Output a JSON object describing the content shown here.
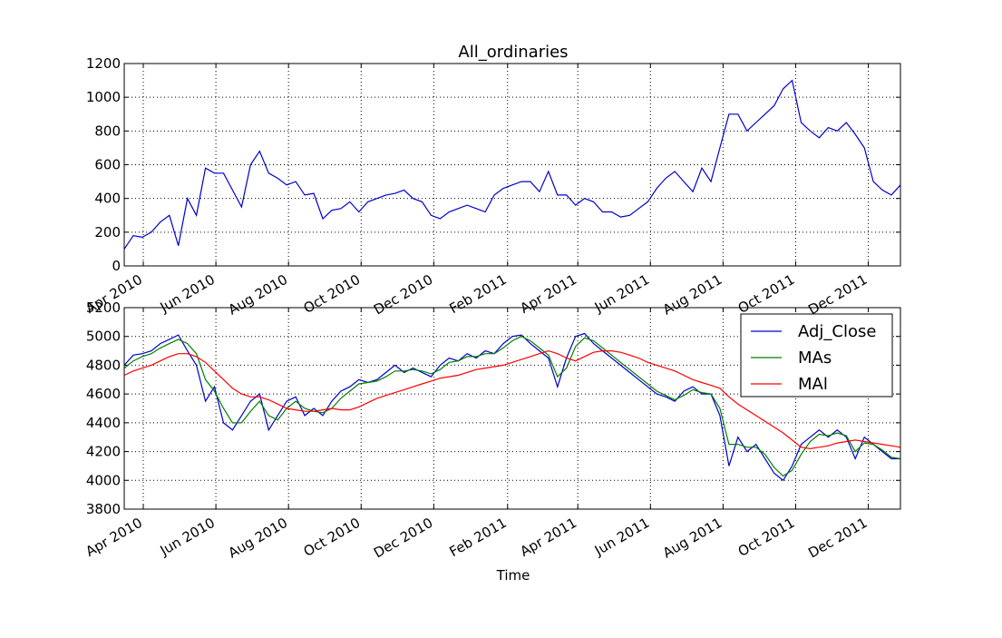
{
  "chart_data": [
    {
      "type": "line",
      "title": "All_ordinaries",
      "xlim": [
        "2010-03-16",
        "2011-12-28"
      ],
      "xticks": [
        {
          "value": "2010-04",
          "label": "Apr 2010"
        },
        {
          "value": "2010-06",
          "label": "Jun 2010"
        },
        {
          "value": "2010-08",
          "label": "Aug 2010"
        },
        {
          "value": "2010-10",
          "label": "Oct 2010"
        },
        {
          "value": "2010-12",
          "label": "Dec 2010"
        },
        {
          "value": "2011-02",
          "label": "Feb 2011"
        },
        {
          "value": "2011-04",
          "label": "Apr 2011"
        },
        {
          "value": "2011-06",
          "label": "Jun 2011"
        },
        {
          "value": "2011-08",
          "label": "Aug 2011"
        },
        {
          "value": "2011-10",
          "label": "Oct 2011"
        },
        {
          "value": "2011-12",
          "label": "Dec 2011"
        }
      ],
      "ylim": [
        0,
        1200
      ],
      "yticks": [
        0,
        200,
        400,
        600,
        800,
        1000,
        1200
      ],
      "grid": true,
      "series": [
        {
          "color": "#0000cc",
          "values": [
            100,
            180,
            170,
            200,
            260,
            300,
            120,
            400,
            300,
            580,
            550,
            550,
            450,
            350,
            600,
            680,
            550,
            520,
            480,
            500,
            420,
            430,
            280,
            330,
            340,
            380,
            320,
            380,
            400,
            420,
            430,
            450,
            400,
            380,
            300,
            280,
            320,
            340,
            360,
            340,
            320,
            420,
            460,
            480,
            500,
            500,
            440,
            560,
            420,
            420,
            360,
            400,
            380,
            320,
            320,
            290,
            300,
            340,
            380,
            460,
            520,
            560,
            500,
            440,
            580,
            500,
            700,
            900,
            900,
            800,
            850,
            900,
            950,
            1050,
            1100,
            850,
            800,
            760,
            820,
            800,
            850,
            780,
            700,
            500,
            450,
            420,
            480
          ]
        }
      ]
    },
    {
      "type": "line",
      "x_label": "Time",
      "xlim": [
        "2010-03-16",
        "2011-12-28"
      ],
      "xticks": [
        {
          "value": "2010-04",
          "label": "Apr 2010"
        },
        {
          "value": "2010-06",
          "label": "Jun 2010"
        },
        {
          "value": "2010-08",
          "label": "Aug 2010"
        },
        {
          "value": "2010-10",
          "label": "Oct 2010"
        },
        {
          "value": "2010-12",
          "label": "Dec 2010"
        },
        {
          "value": "2011-02",
          "label": "Feb 2011"
        },
        {
          "value": "2011-04",
          "label": "Apr 2011"
        },
        {
          "value": "2011-06",
          "label": "Jun 2011"
        },
        {
          "value": "2011-08",
          "label": "Aug 2011"
        },
        {
          "value": "2011-10",
          "label": "Oct 2011"
        },
        {
          "value": "2011-12",
          "label": "Dec 2011"
        }
      ],
      "ylim": [
        3800,
        5200
      ],
      "yticks": [
        3800,
        4000,
        4200,
        4400,
        4600,
        4800,
        5000,
        5200
      ],
      "grid": true,
      "legend": "upper right",
      "series": [
        {
          "name": "Adj_Close",
          "color": "#0000cc",
          "values": [
            4800,
            4870,
            4880,
            4900,
            4950,
            4980,
            5010,
            4900,
            4800,
            4550,
            4650,
            4400,
            4350,
            4450,
            4550,
            4600,
            4350,
            4450,
            4550,
            4580,
            4450,
            4500,
            4450,
            4550,
            4620,
            4650,
            4700,
            4680,
            4700,
            4750,
            4800,
            4750,
            4780,
            4750,
            4720,
            4800,
            4850,
            4830,
            4880,
            4850,
            4900,
            4880,
            4950,
            5000,
            5010,
            4950,
            4900,
            4850,
            4650,
            4850,
            5000,
            5020,
            4950,
            4900,
            4850,
            4800,
            4750,
            4700,
            4650,
            4600,
            4580,
            4550,
            4620,
            4650,
            4600,
            4600,
            4450,
            4100,
            4300,
            4200,
            4250,
            4150,
            4050,
            4000,
            4100,
            4250,
            4300,
            4350,
            4300,
            4350,
            4300,
            4150,
            4300,
            4250,
            4200,
            4150,
            4150
          ]
        },
        {
          "name": "MAs",
          "color": "#008000",
          "values": [
            4780,
            4830,
            4860,
            4880,
            4920,
            4950,
            4980,
            4950,
            4880,
            4700,
            4620,
            4500,
            4400,
            4400,
            4480,
            4550,
            4450,
            4420,
            4500,
            4550,
            4500,
            4480,
            4470,
            4500,
            4570,
            4620,
            4670,
            4680,
            4690,
            4720,
            4760,
            4760,
            4770,
            4760,
            4740,
            4770,
            4820,
            4830,
            4860,
            4860,
            4880,
            4880,
            4920,
            4970,
            5000,
            4970,
            4920,
            4870,
            4720,
            4780,
            4930,
            4990,
            4970,
            4920,
            4870,
            4820,
            4770,
            4720,
            4670,
            4620,
            4590,
            4560,
            4590,
            4630,
            4610,
            4600,
            4500,
            4250,
            4250,
            4230,
            4230,
            4180,
            4090,
            4030,
            4070,
            4180,
            4270,
            4320,
            4310,
            4330,
            4310,
            4200,
            4260,
            4250,
            4210,
            4160,
            4150
          ]
        },
        {
          "name": "MAl",
          "color": "#ff0000",
          "values": [
            4730,
            4760,
            4780,
            4800,
            4830,
            4860,
            4880,
            4880,
            4860,
            4820,
            4760,
            4700,
            4640,
            4600,
            4580,
            4580,
            4560,
            4530,
            4500,
            4490,
            4480,
            4480,
            4490,
            4500,
            4490,
            4490,
            4510,
            4540,
            4570,
            4590,
            4610,
            4630,
            4650,
            4670,
            4690,
            4710,
            4720,
            4730,
            4750,
            4770,
            4780,
            4790,
            4800,
            4820,
            4840,
            4860,
            4880,
            4900,
            4880,
            4850,
            4830,
            4860,
            4890,
            4900,
            4900,
            4890,
            4870,
            4850,
            4820,
            4800,
            4780,
            4760,
            4730,
            4700,
            4680,
            4660,
            4640,
            4580,
            4530,
            4490,
            4450,
            4410,
            4370,
            4330,
            4280,
            4230,
            4220,
            4230,
            4240,
            4260,
            4270,
            4280,
            4270,
            4260,
            4250,
            4240,
            4230
          ]
        }
      ]
    }
  ]
}
